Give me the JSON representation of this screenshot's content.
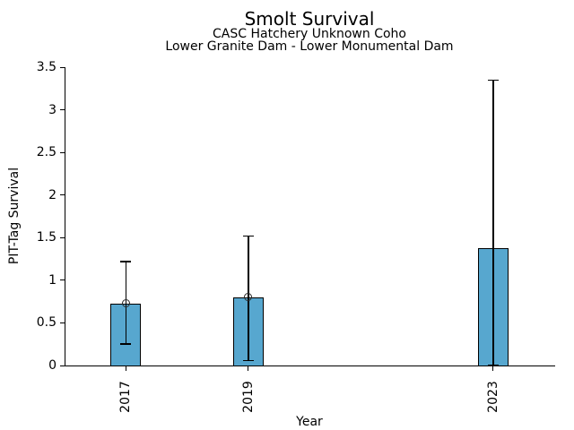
{
  "chart_data": {
    "type": "bar",
    "title": "Smolt Survival",
    "subtitle_line1": "CASC Hatchery Unknown Coho",
    "subtitle_line2": "Lower Granite Dam - Lower Monumental Dam",
    "xlabel": "Year",
    "ylabel": "PIT-Tag Survival",
    "categories": [
      "2017",
      "2019",
      "2023"
    ],
    "x_numeric": [
      2017,
      2019,
      2023
    ],
    "series": [
      {
        "name": "PIT-Tag Survival",
        "values": [
          0.73,
          0.8,
          1.38
        ]
      }
    ],
    "error_low": [
      0.25,
      0.06,
      0.0
    ],
    "error_high": [
      1.22,
      1.52,
      3.35
    ],
    "point_markers": [
      0.73,
      0.8,
      null
    ],
    "xlim": [
      2016,
      2024
    ],
    "ylim": [
      0,
      3.5
    ],
    "yticks": [
      0,
      0.5,
      1,
      1.5,
      2,
      2.5,
      3,
      3.5
    ],
    "ytick_labels": [
      "0",
      "0.5",
      "1",
      "1.5",
      "2",
      "2.5",
      "3",
      "3.5"
    ],
    "bar_width_x": 0.5,
    "grid": false,
    "legend": null,
    "colors": {
      "bar_fill": "#57A7CF",
      "bar_edge": "#000000",
      "error_bar": "#000000",
      "text": "#000000",
      "background": "#FFFFFF"
    }
  }
}
